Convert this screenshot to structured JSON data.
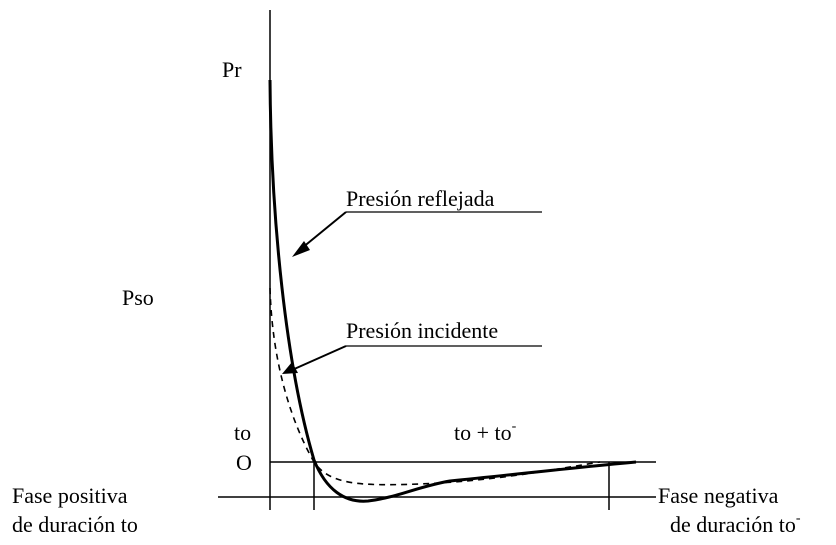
{
  "labels": {
    "peak_reflected": "Pr",
    "peak_incident": "Pso",
    "time_to": "to",
    "time_total_base": "to + to",
    "time_total_sup": "-",
    "origin": "O",
    "reflected_pressure": "Presión reflejada",
    "incident_pressure": "Presión incidente",
    "positive_phase_line1": "Fase positiva",
    "positive_phase_line2": "de duración to",
    "negative_phase_line1": "Fase negativa",
    "negative_phase_line2_base": "de duración to",
    "negative_phase_line2_sup": "-"
  },
  "curves": [
    {
      "name": "Presión reflejada",
      "style": "solid"
    },
    {
      "name": "Presión incidente",
      "style": "dashed"
    }
  ]
}
